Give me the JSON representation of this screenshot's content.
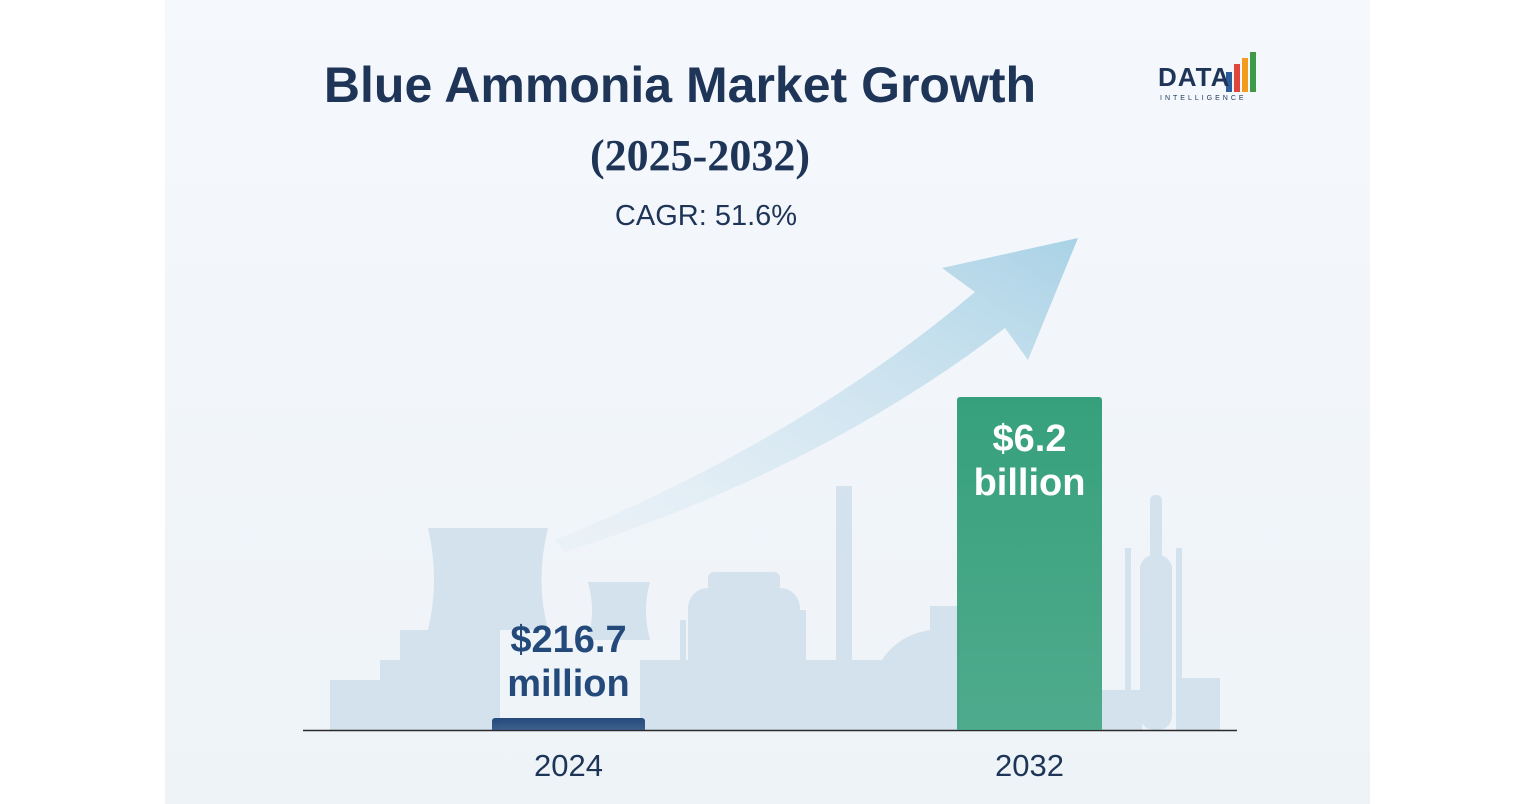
{
  "chart_data": {
    "type": "bar",
    "title": "Blue Ammonia Market Growth",
    "subtitle": "(2025-2032)",
    "annotation": "CAGR: 51.6%",
    "logo": {
      "name": "DATA",
      "tagline": "INTELLIGENCE"
    },
    "categories": [
      "2024",
      "2032"
    ],
    "values": [
      216.7,
      6200
    ],
    "value_labels": [
      "$216.7 million",
      "$6.2 billion"
    ],
    "colors": [
      "#244a7c",
      "#36a07c"
    ]
  }
}
